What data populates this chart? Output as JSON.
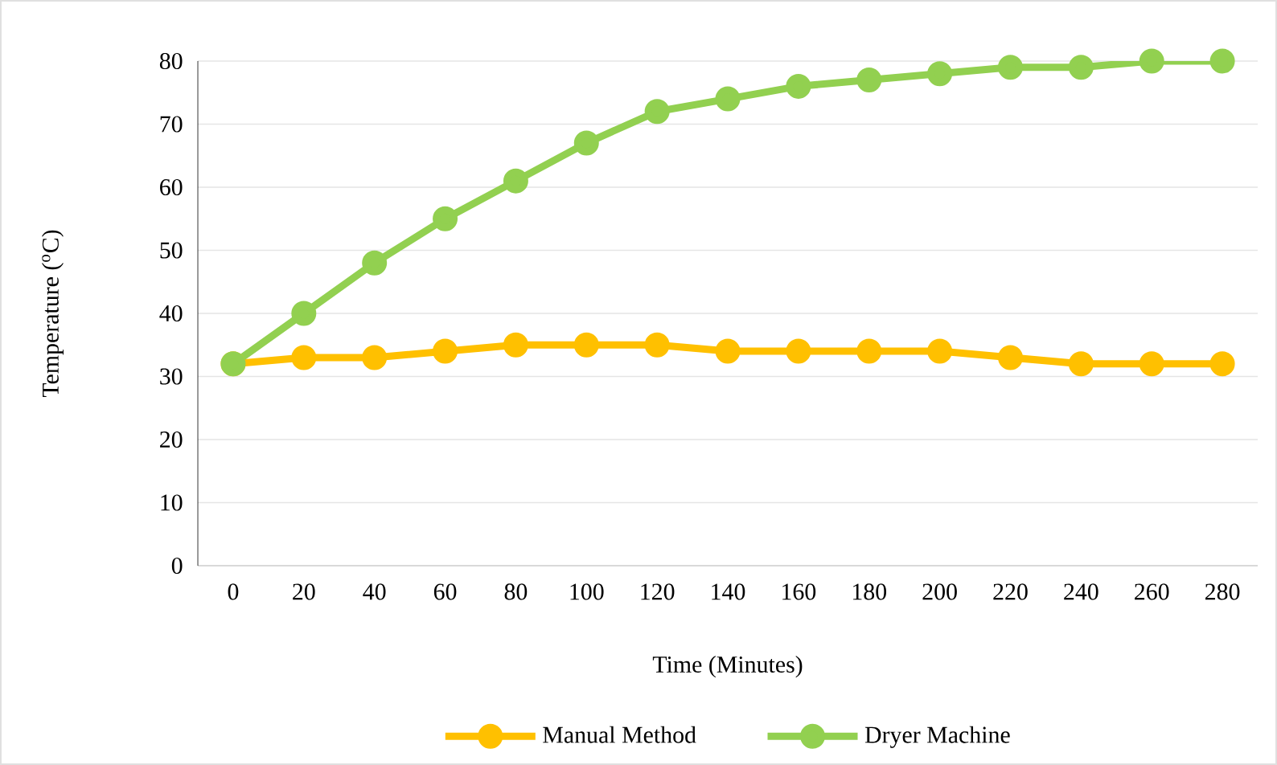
{
  "chart_data": {
    "type": "line",
    "xlabel": "Time (Minutes)",
    "ylabel": "Temperature ($^{o}$C)",
    "categories": [
      "0",
      "20",
      "40",
      "60",
      "80",
      "100",
      "120",
      "140",
      "160",
      "180",
      "200",
      "220",
      "240",
      "260",
      "280"
    ],
    "series": [
      {
        "name": "Manual Method",
        "color": "#ffc000",
        "values": [
          32,
          33,
          33,
          34,
          35,
          35,
          35,
          34,
          34,
          34,
          34,
          33,
          32,
          32,
          32
        ]
      },
      {
        "name": "Dryer Machine",
        "color": "#92d050",
        "values": [
          32,
          40,
          48,
          55,
          61,
          67,
          72,
          74,
          76,
          77,
          78,
          79,
          79,
          80,
          80
        ]
      }
    ],
    "ylim": [
      0,
      80
    ],
    "yticks": [
      0,
      10,
      20,
      30,
      40,
      50,
      60,
      70,
      80
    ],
    "grid": "y",
    "legend": "bottom",
    "marker": "circle",
    "line_style": "solid"
  }
}
